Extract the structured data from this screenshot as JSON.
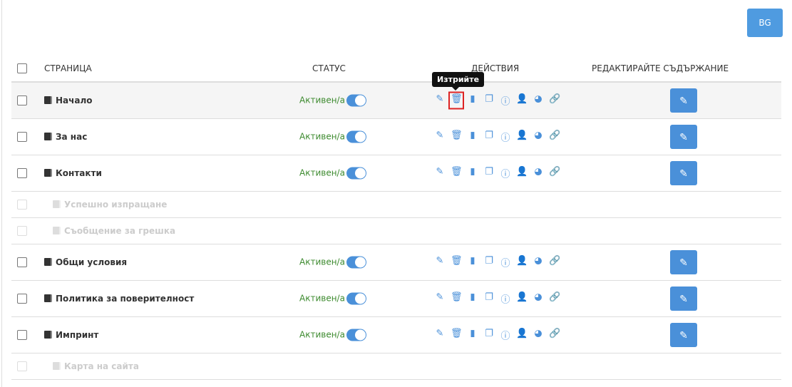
{
  "language_button": "BG",
  "headers": {
    "page": "СТРАНИЦА",
    "status": "СТАТУС",
    "actions": "ДЕЙСТВИЯ",
    "edit_content": "РЕДАКТИРАЙТЕ СЪДЪРЖАНИЕ"
  },
  "tooltip": "Изтрийте",
  "rows": [
    {
      "name": "Начало",
      "status": "Активен/а",
      "active": true
    },
    {
      "name": "За нас",
      "status": "Активен/а",
      "active": true
    },
    {
      "name": "Контакти",
      "status": "Активен/а",
      "active": true
    },
    {
      "name": "Успешно изпращане",
      "disabled": true
    },
    {
      "name": "Съобщение за грешка",
      "disabled": true
    },
    {
      "name": "Общи условия",
      "status": "Активен/а",
      "active": true
    },
    {
      "name": "Политика за поверителност",
      "status": "Активен/а",
      "active": true
    },
    {
      "name": "Импринт",
      "status": "Активен/а",
      "active": true
    },
    {
      "name": "Карта на сайта",
      "disabled": true
    }
  ],
  "action_icons": [
    "pencil-icon",
    "trash-icon",
    "file-icon",
    "copy-icon",
    "info-icon",
    "user-icon",
    "globe-icon",
    "link-icon"
  ],
  "colors": {
    "accent": "#4a90d9",
    "status": "#3c8a2e"
  }
}
